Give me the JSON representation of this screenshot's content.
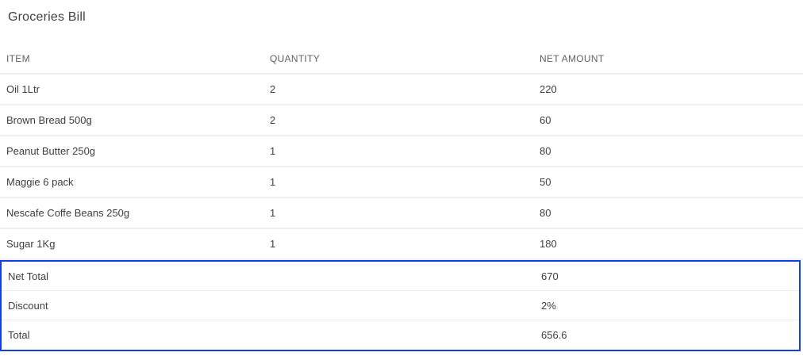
{
  "page": {
    "title": "Groceries Bill"
  },
  "table": {
    "columns": [
      {
        "label": "ITEM"
      },
      {
        "label": "QUANTITY"
      },
      {
        "label": "NET AMOUNT"
      }
    ],
    "rows": [
      {
        "item": "Oil 1Ltr",
        "quantity": "2",
        "net_amount": "220"
      },
      {
        "item": "Brown Bread 500g",
        "quantity": "2",
        "net_amount": "60"
      },
      {
        "item": "Peanut Butter 250g",
        "quantity": "1",
        "net_amount": "80"
      },
      {
        "item": "Maggie 6 pack",
        "quantity": "1",
        "net_amount": "50"
      },
      {
        "item": "Nescafe Coffe Beans 250g",
        "quantity": "1",
        "net_amount": "80"
      },
      {
        "item": "Sugar 1Kg",
        "quantity": "1",
        "net_amount": "180"
      }
    ],
    "summary": [
      {
        "label": "Net Total",
        "value": "670"
      },
      {
        "label": "Discount",
        "value": "2%"
      },
      {
        "label": "Total",
        "value": "656.6"
      }
    ]
  },
  "colors": {
    "highlight_border": "#1140dd",
    "divider": "#ededed",
    "header_text": "#5f6368",
    "cell_text": "#3c4043"
  }
}
